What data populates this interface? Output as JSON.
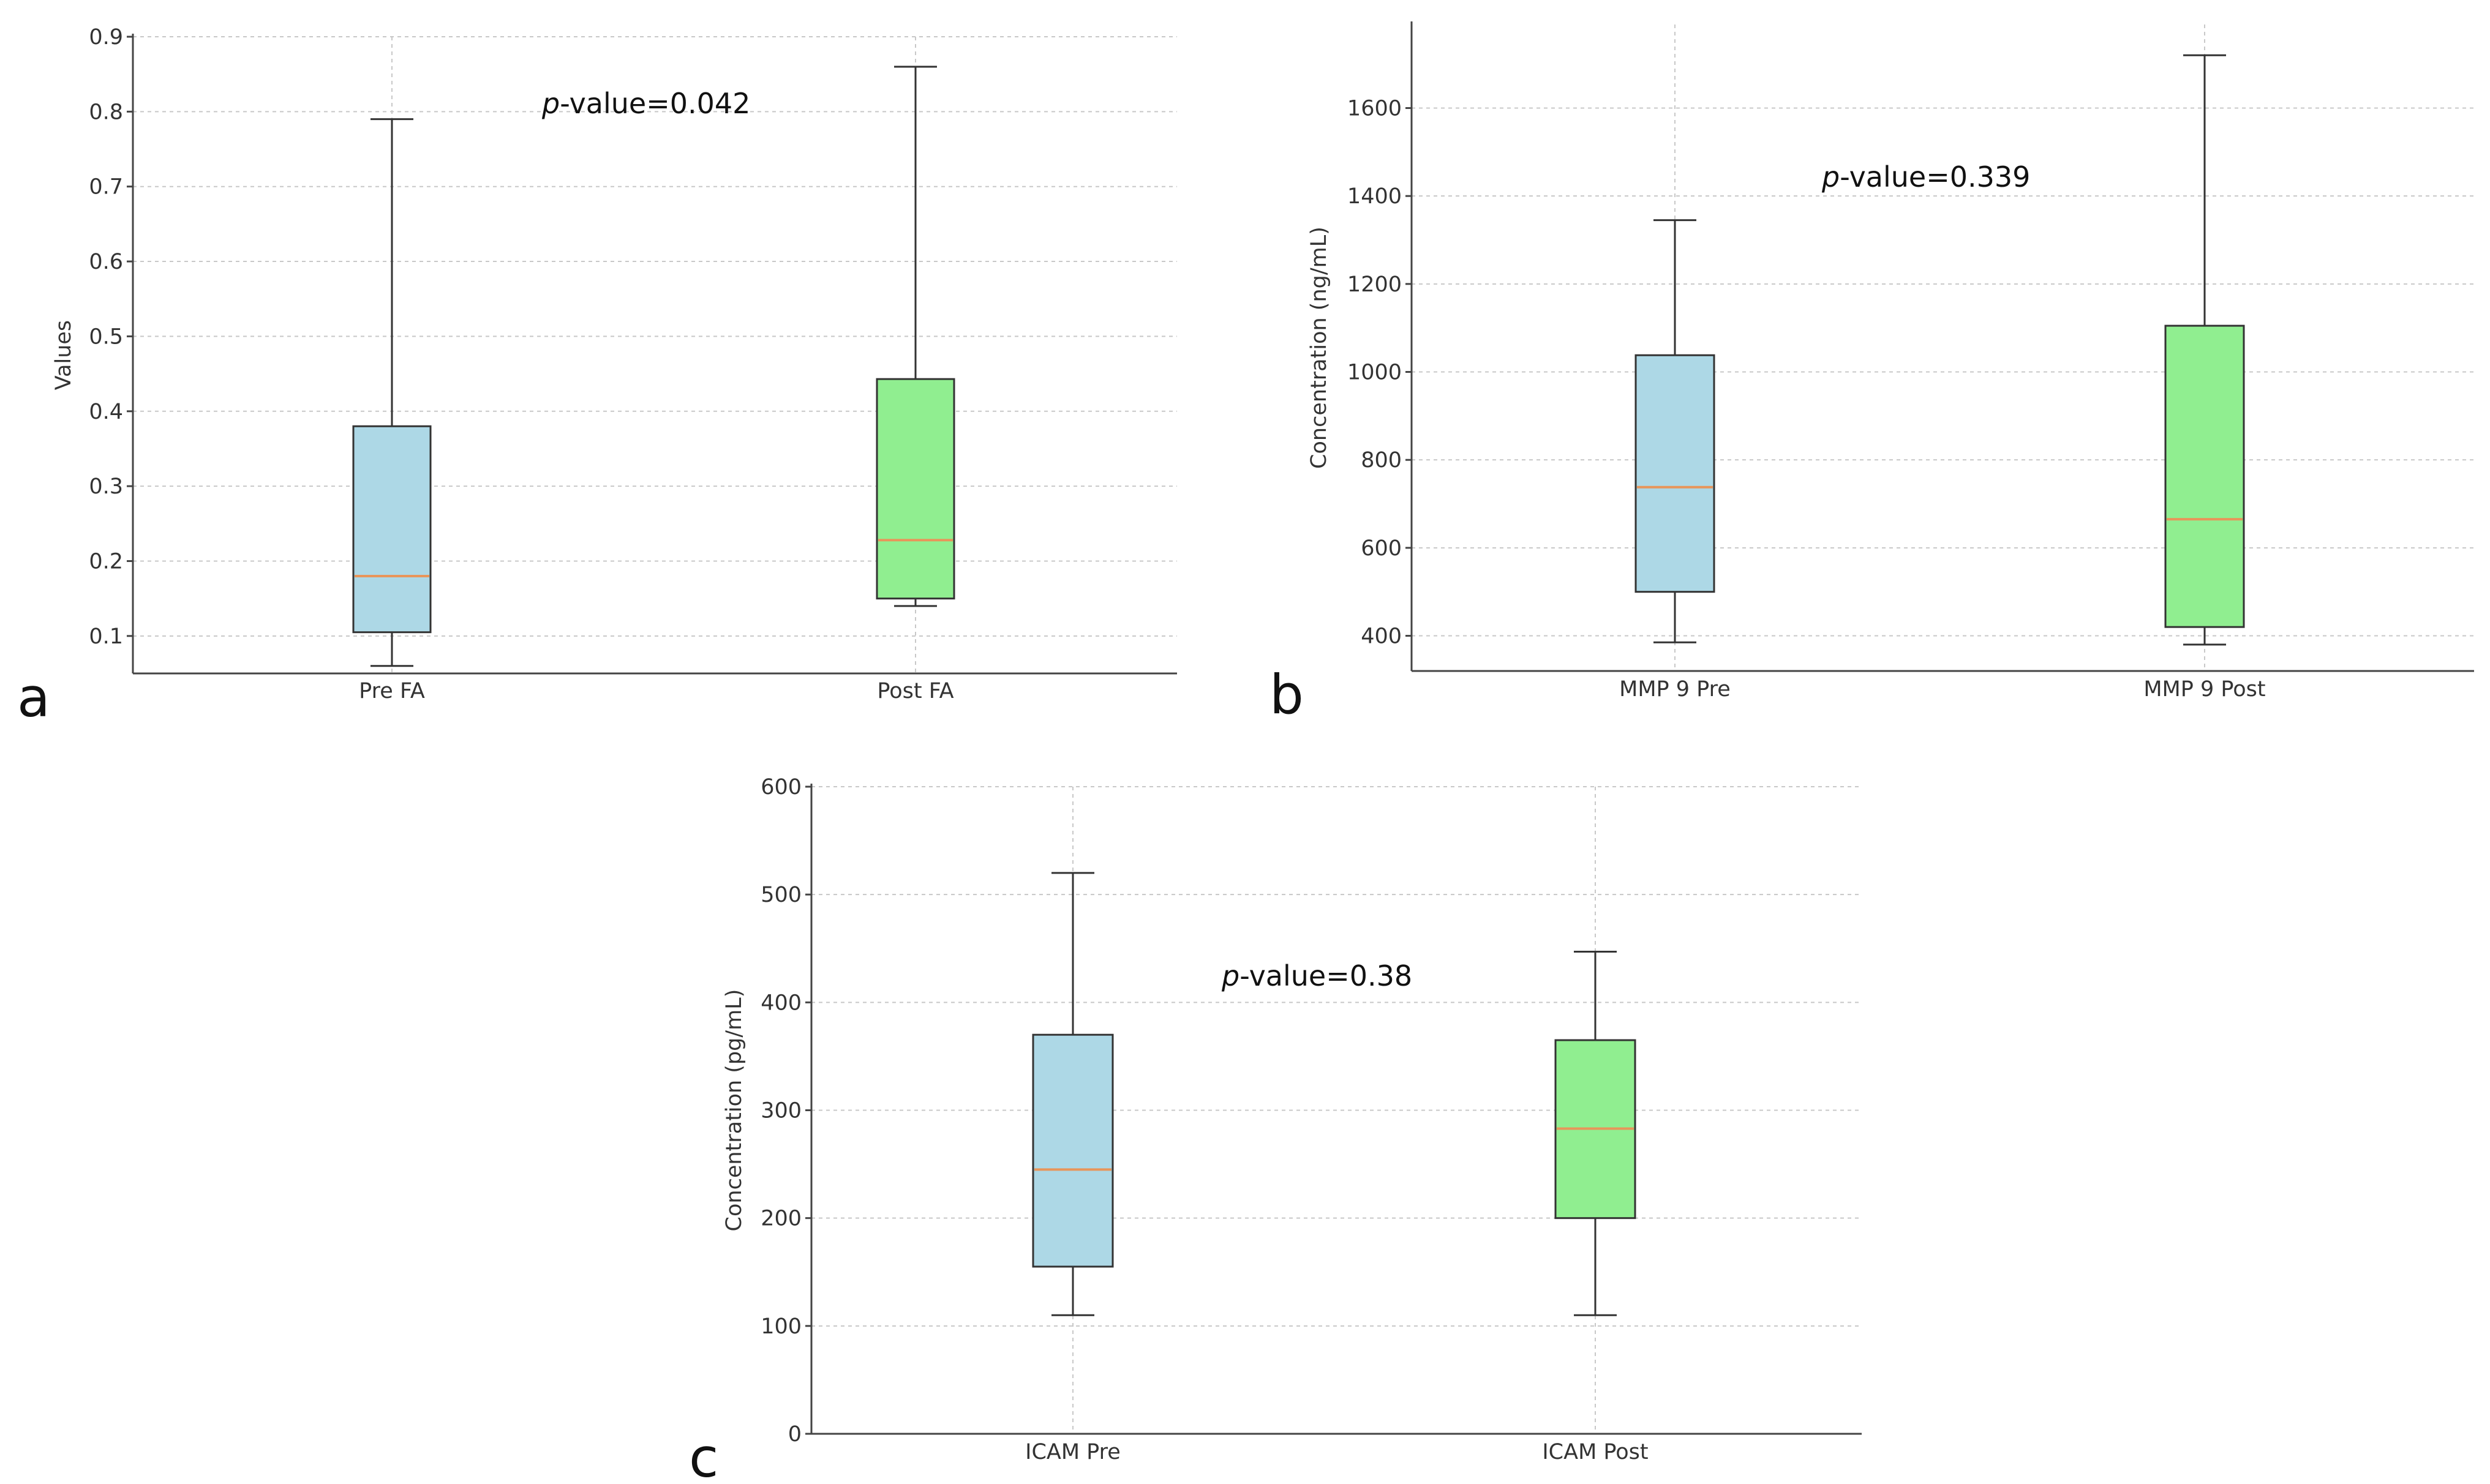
{
  "colors": {
    "pre_box": "#add8e6",
    "post_box": "#90ee90",
    "median": "#e8955a",
    "background": "#ffffff"
  },
  "chart_data": [
    {
      "panel_label": "a",
      "type": "box",
      "title": "",
      "xlabel": "",
      "ylabel": "Values",
      "ylim": [
        0.05,
        0.9
      ],
      "yticks": [
        0.1,
        0.2,
        0.3,
        0.4,
        0.5,
        0.6,
        0.7,
        0.8,
        0.9
      ],
      "ytick_labels": [
        "0.1",
        "0.2",
        "0.3",
        "0.4",
        "0.5",
        "0.6",
        "0.7",
        "0.8",
        "0.9"
      ],
      "grid": true,
      "annotation": {
        "italic": "p",
        "rest": "-value=0.042"
      },
      "categories": [
        "Pre FA",
        "Post FA"
      ],
      "series": [
        {
          "name": "Pre FA",
          "min": 0.06,
          "q1": 0.105,
          "median": 0.18,
          "q3": 0.38,
          "max": 0.79
        },
        {
          "name": "Post FA",
          "min": 0.14,
          "q1": 0.15,
          "median": 0.228,
          "q3": 0.443,
          "max": 0.86
        }
      ]
    },
    {
      "panel_label": "b",
      "type": "box",
      "title": "",
      "xlabel": "",
      "ylabel": "Concentration (ng/mL)",
      "ylim": [
        320,
        1790
      ],
      "yticks": [
        400,
        600,
        800,
        1000,
        1200,
        1400,
        1600
      ],
      "ytick_labels": [
        "400",
        "600",
        "800",
        "1000",
        "1200",
        "1400",
        "1600"
      ],
      "grid": true,
      "annotation": {
        "italic": "p",
        "rest": "-value=0.339"
      },
      "categories": [
        "MMP 9 Pre",
        "MMP 9 Post"
      ],
      "series": [
        {
          "name": "MMP 9 Pre",
          "min": 385,
          "q1": 500,
          "median": 738,
          "q3": 1038,
          "max": 1345
        },
        {
          "name": "MMP 9 Post",
          "min": 380,
          "q1": 420,
          "median": 665,
          "q3": 1105,
          "max": 1720
        }
      ]
    },
    {
      "panel_label": "c",
      "type": "box",
      "title": "",
      "xlabel": "",
      "ylabel": "Concentration (pg/mL)",
      "ylim": [
        0,
        600
      ],
      "yticks": [
        0,
        100,
        200,
        300,
        400,
        500,
        600
      ],
      "ytick_labels": [
        "0",
        "100",
        "200",
        "300",
        "400",
        "500",
        "600"
      ],
      "grid": true,
      "annotation": {
        "italic": "p",
        "rest": "-value=0.38"
      },
      "categories": [
        "ICAM Pre",
        "ICAM Post"
      ],
      "series": [
        {
          "name": "ICAM Pre",
          "min": 110,
          "q1": 155,
          "median": 245,
          "q3": 370,
          "max": 520
        },
        {
          "name": "ICAM Post",
          "min": 110,
          "q1": 200,
          "median": 283,
          "q3": 365,
          "max": 447
        }
      ]
    }
  ]
}
